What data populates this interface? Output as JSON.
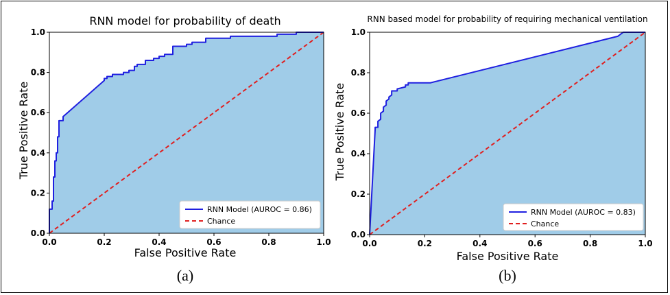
{
  "chart_data": [
    {
      "type": "area",
      "title": "RNN model for probability of death",
      "xlabel": "False Positive Rate",
      "ylabel": "True Positive Rate",
      "xlim": [
        0,
        1
      ],
      "ylim": [
        0,
        1
      ],
      "xticks": [
        "0.0",
        "0.2",
        "0.4",
        "0.6",
        "0.8",
        "1.0"
      ],
      "yticks": [
        "0.0",
        "0.2",
        "0.4",
        "0.6",
        "0.8",
        "1.0"
      ],
      "caption": "(a)",
      "legend_position": "lower-right",
      "series": [
        {
          "name": "RNN Model (AUROC = 0.86)",
          "color": "#1f1fe0",
          "fill": "#a0cce8",
          "style": "solid",
          "x": [
            0.0,
            0.0,
            0.01,
            0.01,
            0.015,
            0.015,
            0.02,
            0.02,
            0.025,
            0.025,
            0.03,
            0.03,
            0.035,
            0.035,
            0.05,
            0.05,
            0.2,
            0.2,
            0.21,
            0.21,
            0.23,
            0.23,
            0.27,
            0.27,
            0.29,
            0.29,
            0.31,
            0.31,
            0.32,
            0.32,
            0.35,
            0.35,
            0.38,
            0.38,
            0.4,
            0.4,
            0.42,
            0.42,
            0.45,
            0.45,
            0.5,
            0.5,
            0.52,
            0.52,
            0.57,
            0.57,
            0.66,
            0.66,
            0.83,
            0.83,
            0.9,
            0.9,
            1.0
          ],
          "y": [
            0.0,
            0.12,
            0.12,
            0.16,
            0.16,
            0.28,
            0.28,
            0.36,
            0.36,
            0.4,
            0.4,
            0.48,
            0.48,
            0.56,
            0.56,
            0.58,
            0.76,
            0.77,
            0.77,
            0.78,
            0.78,
            0.79,
            0.79,
            0.8,
            0.8,
            0.81,
            0.81,
            0.83,
            0.83,
            0.84,
            0.84,
            0.86,
            0.86,
            0.87,
            0.87,
            0.88,
            0.88,
            0.89,
            0.89,
            0.93,
            0.93,
            0.94,
            0.94,
            0.95,
            0.95,
            0.97,
            0.97,
            0.98,
            0.98,
            0.99,
            0.99,
            1.0,
            1.0
          ]
        },
        {
          "name": "Chance",
          "color": "#e01f1f",
          "style": "dashed",
          "x": [
            0,
            1
          ],
          "y": [
            0,
            1
          ]
        }
      ]
    },
    {
      "type": "area",
      "title": "RNN based model for probability of requiring mechanical ventilation",
      "xlabel": "False Positive Rate",
      "ylabel": "True Positive Rate",
      "xlim": [
        0,
        1
      ],
      "ylim": [
        0,
        1
      ],
      "xticks": [
        "0.0",
        "0.2",
        "0.4",
        "0.6",
        "0.8",
        "1.0"
      ],
      "yticks": [
        "0.0",
        "0.2",
        "0.4",
        "0.6",
        "0.8",
        "1.0"
      ],
      "caption": "(b)",
      "legend_position": "lower-right",
      "series": [
        {
          "name": "RNN Model (AUROC = 0.83)",
          "color": "#1f1fe0",
          "fill": "#a0cce8",
          "style": "solid",
          "x": [
            0.0,
            0.02,
            0.02,
            0.03,
            0.03,
            0.04,
            0.04,
            0.05,
            0.05,
            0.06,
            0.06,
            0.07,
            0.07,
            0.08,
            0.08,
            0.1,
            0.1,
            0.13,
            0.13,
            0.14,
            0.14,
            0.17,
            0.17,
            0.22,
            0.9,
            0.91,
            0.92,
            1.0
          ],
          "y": [
            0.0,
            0.52,
            0.53,
            0.53,
            0.56,
            0.57,
            0.6,
            0.61,
            0.63,
            0.64,
            0.66,
            0.67,
            0.68,
            0.69,
            0.71,
            0.71,
            0.72,
            0.73,
            0.74,
            0.74,
            0.75,
            0.75,
            0.75,
            0.75,
            0.98,
            0.99,
            1.0,
            1.0
          ]
        },
        {
          "name": "Chance",
          "color": "#e01f1f",
          "style": "dashed",
          "x": [
            0,
            1
          ],
          "y": [
            0,
            1
          ]
        }
      ]
    }
  ]
}
